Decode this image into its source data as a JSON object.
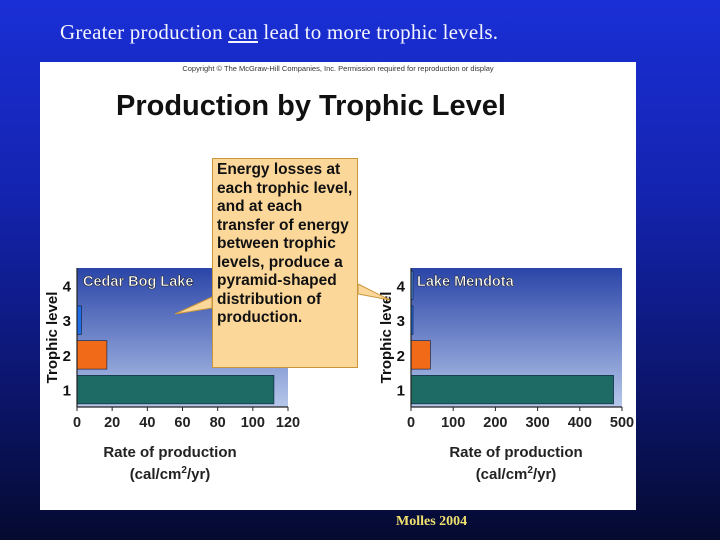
{
  "slide": {
    "title_before": "Greater production ",
    "title_underlined": "can",
    "title_after": " lead to more trophic levels.",
    "footer": "Molles 2004"
  },
  "figure": {
    "copyright": "Copyright © The McGraw-Hill Companies, Inc. Permission required for reproduction or display",
    "title": "Production by Trophic Level",
    "callout": "Energy losses at each trophic level, and at each transfer of energy between trophic levels, produce a pyramid-shaped distribution of production."
  },
  "chart_data": [
    {
      "type": "bar",
      "orientation": "horizontal",
      "title": "Cedar Bog Lake",
      "ylabel": "Trophic level",
      "xlabel": "Rate of production",
      "xunit_prefix": "(cal/cm",
      "xunit_sup": "2",
      "xunit_suffix": "/yr)",
      "categories": [
        "1",
        "2",
        "3",
        "4"
      ],
      "values": [
        112,
        17,
        2.5,
        0
      ],
      "xlim": [
        0,
        120
      ],
      "xticks": [
        0,
        20,
        40,
        60,
        80,
        100,
        120
      ],
      "bar_colors": [
        "#1e6b66",
        "#f06a18",
        "#1f6ee8",
        "#4a8be0"
      ]
    },
    {
      "type": "bar",
      "orientation": "horizontal",
      "title": "Lake Mendota",
      "ylabel": "Trophic level",
      "xlabel": "Rate of production",
      "xunit_prefix": "(cal/cm",
      "xunit_sup": "2",
      "xunit_suffix": "/yr)",
      "categories": [
        "1",
        "2",
        "3",
        "4"
      ],
      "values": [
        480,
        46,
        3,
        0.3
      ],
      "xlim": [
        0,
        500
      ],
      "xticks": [
        0,
        100,
        200,
        300,
        400,
        500
      ],
      "bar_colors": [
        "#1e6b66",
        "#f06a18",
        "#1f6ee8",
        "#4a8be0"
      ]
    }
  ]
}
